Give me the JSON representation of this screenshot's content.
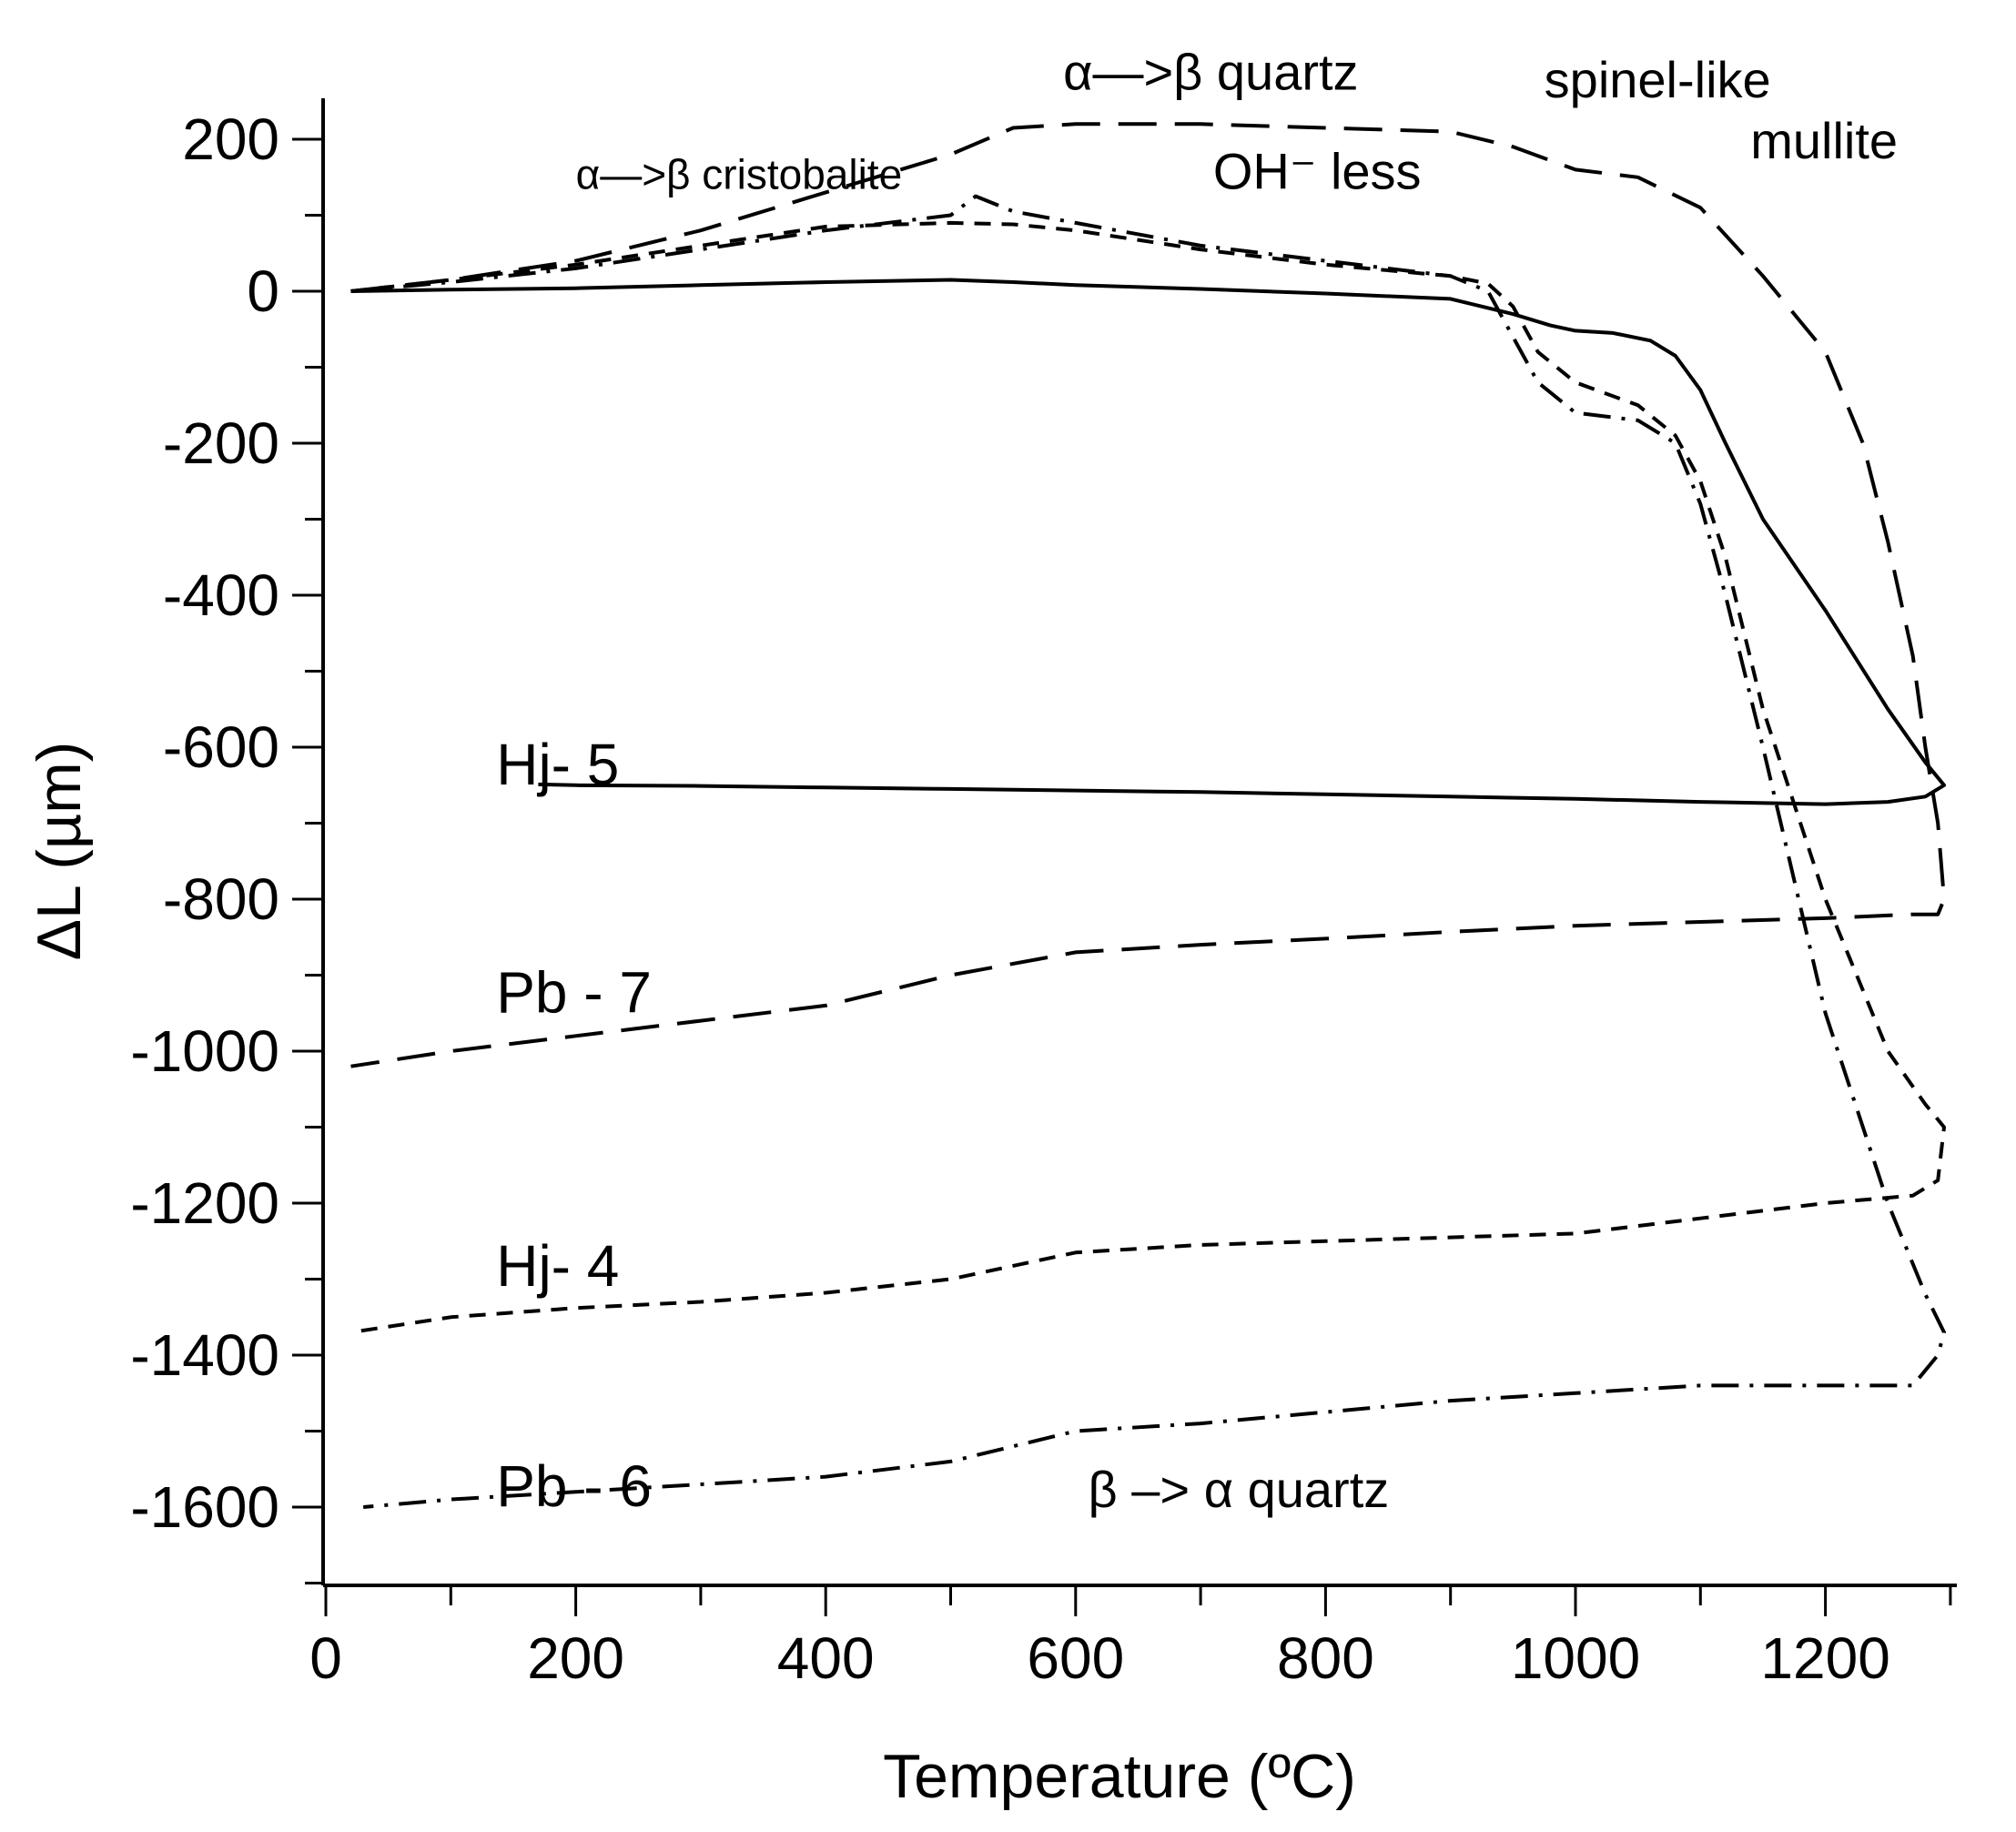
{
  "chart_data": {
    "type": "line",
    "title": "",
    "xlabel": "Temperature (ºC)",
    "ylabel": "ΔL (µm)",
    "xlim": [
      0,
      1300
    ],
    "ylim": [
      -1700,
      250
    ],
    "x_ticks": [
      0,
      200,
      400,
      600,
      800,
      1000,
      1200
    ],
    "y_ticks": [
      200,
      0,
      -200,
      -400,
      -600,
      -800,
      -1000,
      -1200,
      -1400,
      -1600
    ],
    "grid": false,
    "annotations": [
      {
        "id": "cristobalite",
        "text": "α—>β cristobalite",
        "x": 200,
        "y": 135
      },
      {
        "id": "quartz-up",
        "text": "α—>β quartz",
        "x": 590,
        "y": 265
      },
      {
        "id": "oh-less",
        "text": "OH⁻ less",
        "x": 710,
        "y": 135
      },
      {
        "id": "spinel",
        "text": "spinel-like",
        "x": 975,
        "y": 255
      },
      {
        "id": "mullite",
        "text": "mullite",
        "x": 1140,
        "y": 175
      },
      {
        "id": "quartz-down",
        "text": "β –> α quartz",
        "x": 610,
        "y": -1600
      }
    ],
    "series": [
      {
        "name": "Hj- 5",
        "label_x": 140,
        "label_y": -625,
        "dash": "solid",
        "x": [
          20,
          100,
          200,
          300,
          400,
          500,
          550,
          600,
          700,
          800,
          900,
          950,
          980,
          1000,
          1030,
          1060,
          1080,
          1100,
          1120,
          1150,
          1200,
          1250,
          1280,
          1295,
          1280,
          1250,
          1200,
          1100,
          1000,
          900,
          800,
          700,
          600,
          500,
          400,
          300,
          200,
          170
        ],
        "y": [
          0,
          2,
          4,
          8,
          12,
          15,
          12,
          8,
          3,
          -3,
          -10,
          -30,
          -45,
          -52,
          -55,
          -65,
          -85,
          -130,
          -200,
          -300,
          -420,
          -550,
          -620,
          -650,
          -665,
          -672,
          -675,
          -672,
          -668,
          -665,
          -662,
          -659,
          -657,
          -655,
          -653,
          -651,
          -650,
          -649
        ]
      },
      {
        "name": "Pb - 7",
        "label_x": 140,
        "label_y": -925,
        "dash": "42 20",
        "x": [
          20,
          100,
          200,
          300,
          400,
          500,
          550,
          600,
          700,
          800,
          900,
          950,
          1000,
          1050,
          1100,
          1150,
          1200,
          1230,
          1250,
          1270,
          1280,
          1290,
          1295,
          1290,
          1270,
          1200,
          1100,
          1000,
          900,
          800,
          700,
          600,
          500,
          400,
          300,
          200,
          100,
          20
        ],
        "y": [
          0,
          15,
          40,
          80,
          130,
          180,
          215,
          220,
          220,
          215,
          210,
          190,
          160,
          150,
          110,
          20,
          -80,
          -200,
          -330,
          -480,
          -600,
          -700,
          -800,
          -820,
          -820,
          -825,
          -830,
          -835,
          -843,
          -852,
          -860,
          -870,
          -900,
          -940,
          -960,
          -980,
          -1000,
          -1020
        ]
      },
      {
        "name": "Hj- 4",
        "label_x": 140,
        "label_y": -1285,
        "dash": "18 12",
        "x": [
          20,
          100,
          200,
          300,
          400,
          500,
          550,
          600,
          700,
          800,
          900,
          930,
          950,
          970,
          1000,
          1050,
          1080,
          1100,
          1120,
          1150,
          1200,
          1250,
          1280,
          1295,
          1290,
          1270,
          1200,
          1100,
          1000,
          900,
          800,
          700,
          600,
          500,
          400,
          300,
          200,
          100,
          20
        ],
        "y": [
          0,
          15,
          35,
          60,
          85,
          90,
          88,
          80,
          55,
          35,
          20,
          10,
          -20,
          -80,
          -120,
          -150,
          -190,
          -250,
          -350,
          -550,
          -800,
          -1000,
          -1070,
          -1100,
          -1170,
          -1190,
          -1200,
          -1220,
          -1240,
          -1245,
          -1250,
          -1255,
          -1265,
          -1300,
          -1318,
          -1330,
          -1338,
          -1350,
          -1370
        ]
      },
      {
        "name": "Pb - 6",
        "label_x": 140,
        "label_y": -1575,
        "dash": "30 12 4 12",
        "x": [
          20,
          100,
          200,
          300,
          400,
          500,
          520,
          550,
          600,
          700,
          800,
          900,
          930,
          950,
          970,
          1000,
          1050,
          1080,
          1100,
          1120,
          1150,
          1200,
          1250,
          1280,
          1295,
          1290,
          1270,
          1250,
          1200,
          1100,
          1000,
          900,
          800,
          700,
          600,
          500,
          400,
          300,
          200,
          100,
          30
        ],
        "y": [
          0,
          12,
          30,
          55,
          80,
          100,
          125,
          105,
          90,
          60,
          40,
          20,
          0,
          -60,
          -120,
          -160,
          -170,
          -200,
          -280,
          -400,
          -600,
          -950,
          -1200,
          -1320,
          -1370,
          -1400,
          -1440,
          -1440,
          -1440,
          -1440,
          -1450,
          -1460,
          -1475,
          -1490,
          -1500,
          -1540,
          -1560,
          -1570,
          -1580,
          -1590,
          -1600
        ]
      }
    ]
  }
}
